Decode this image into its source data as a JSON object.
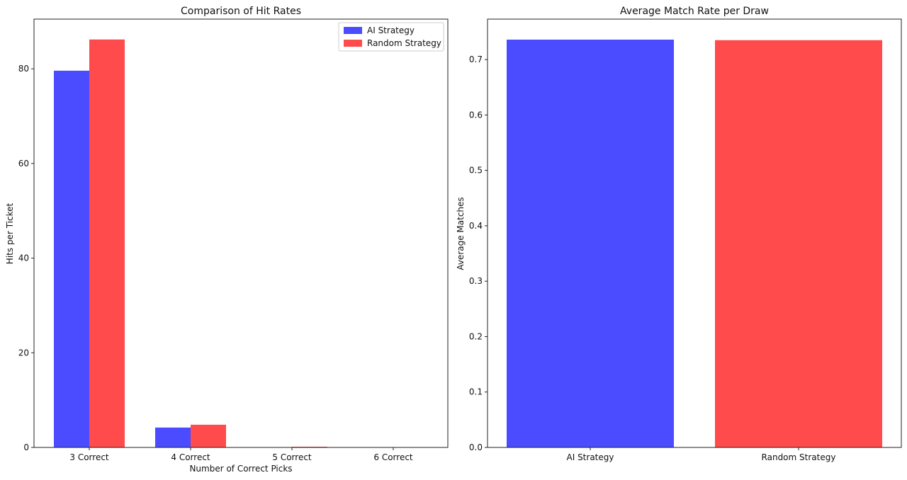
{
  "chart_data": [
    {
      "type": "bar",
      "title": "Comparison of Hit Rates",
      "xlabel": "Number of Correct Picks",
      "ylabel": "Hits per Ticket",
      "categories": [
        "3 Correct",
        "4 Correct",
        "5 Correct",
        "6 Correct"
      ],
      "series": [
        {
          "name": "AI Strategy",
          "color": "#4b4bff",
          "values": [
            79.6,
            4.2,
            0.05,
            0.0
          ]
        },
        {
          "name": "Random Strategy",
          "color": "#ff4b4b",
          "values": [
            86.2,
            4.8,
            0.15,
            0.0
          ]
        }
      ],
      "ylim": [
        0,
        90.5
      ],
      "yticks": [
        0,
        20,
        40,
        60,
        80
      ],
      "legend": "top-right",
      "grid": false
    },
    {
      "type": "bar",
      "title": "Average Match Rate per Draw",
      "xlabel": "",
      "ylabel": "Average Matches",
      "categories": [
        "AI Strategy",
        "Random Strategy"
      ],
      "values": [
        0.736,
        0.735
      ],
      "colors": [
        "#4b4bff",
        "#ff4b4b"
      ],
      "ylim": [
        0,
        0.773
      ],
      "yticks": [
        0.0,
        0.1,
        0.2,
        0.3,
        0.4,
        0.5,
        0.6,
        0.7
      ],
      "grid": false
    }
  ]
}
